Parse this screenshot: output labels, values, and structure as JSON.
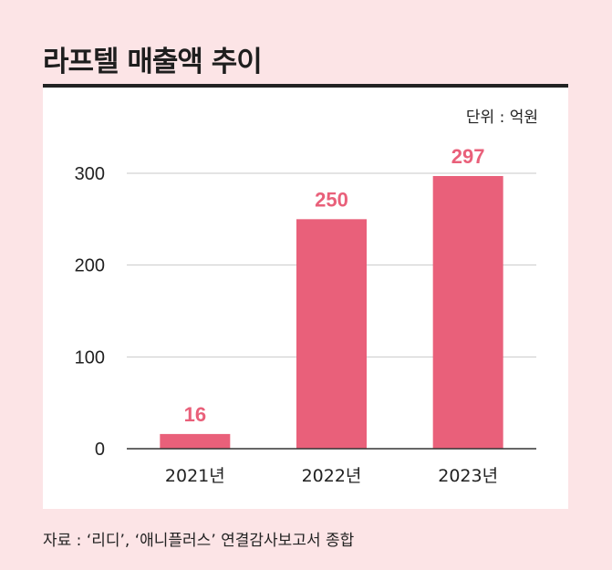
{
  "header": {
    "title": "라프텔 매출액 추이"
  },
  "unit_label": "단위 : 억원",
  "source_note": "자료 : ‘리디’, ‘애니플러스’ 연결감사보고서 종합",
  "colors": {
    "bar": "#e9607a",
    "value_label": "#e9607a",
    "grid": "#c9c9c9",
    "axis": "#333333",
    "background": "#fce4e6",
    "panel": "#ffffff"
  },
  "chart_data": {
    "type": "bar",
    "categories": [
      "2021년",
      "2022년",
      "2023년"
    ],
    "values": [
      16,
      250,
      297
    ],
    "title": "라프텔 매출액 추이",
    "ylim": [
      0,
      300
    ],
    "yticks": [
      0,
      100,
      200,
      300
    ],
    "grid": true
  }
}
